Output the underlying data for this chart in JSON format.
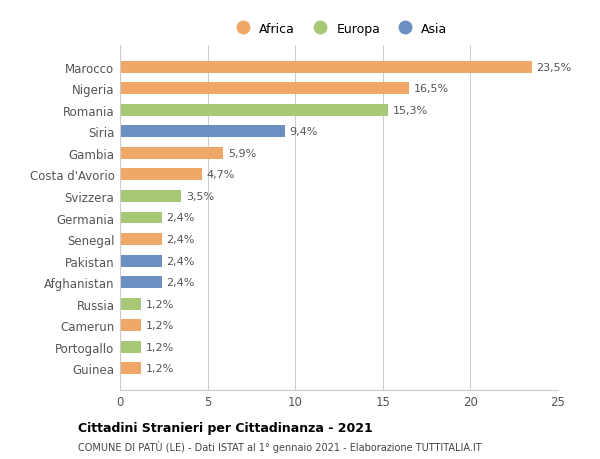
{
  "categories": [
    "Guinea",
    "Portogallo",
    "Camerun",
    "Russia",
    "Afghanistan",
    "Pakistan",
    "Senegal",
    "Germania",
    "Svizzera",
    "Costa d'Avorio",
    "Gambia",
    "Siria",
    "Romania",
    "Nigeria",
    "Marocco"
  ],
  "values": [
    1.2,
    1.2,
    1.2,
    1.2,
    2.4,
    2.4,
    2.4,
    2.4,
    3.5,
    4.7,
    5.9,
    9.4,
    15.3,
    16.5,
    23.5
  ],
  "colors": [
    "#f0a868",
    "#a8c878",
    "#f0a868",
    "#a8c878",
    "#6b8fc0",
    "#6b8fc0",
    "#f0a868",
    "#a8c878",
    "#a8c878",
    "#f0a868",
    "#f0a868",
    "#6b8fc0",
    "#a8c878",
    "#f0a868",
    "#f0a868"
  ],
  "labels": [
    "1,2%",
    "1,2%",
    "1,2%",
    "1,2%",
    "2,4%",
    "2,4%",
    "2,4%",
    "2,4%",
    "3,5%",
    "4,7%",
    "5,9%",
    "9,4%",
    "15,3%",
    "16,5%",
    "23,5%"
  ],
  "legend": [
    {
      "label": "Africa",
      "color": "#f0a868"
    },
    {
      "label": "Europa",
      "color": "#a8c878"
    },
    {
      "label": "Asia",
      "color": "#6b8fc0"
    }
  ],
  "title": "Cittadini Stranieri per Cittadinanza - 2021",
  "subtitle": "COMUNE DI PATÙ (LE) - Dati ISTAT al 1° gennaio 2021 - Elaborazione TUTTITALIA.IT",
  "xlim": [
    0,
    25
  ],
  "xticks": [
    0,
    5,
    10,
    15,
    20,
    25
  ],
  "background_color": "#ffffff",
  "grid_color": "#cccccc"
}
